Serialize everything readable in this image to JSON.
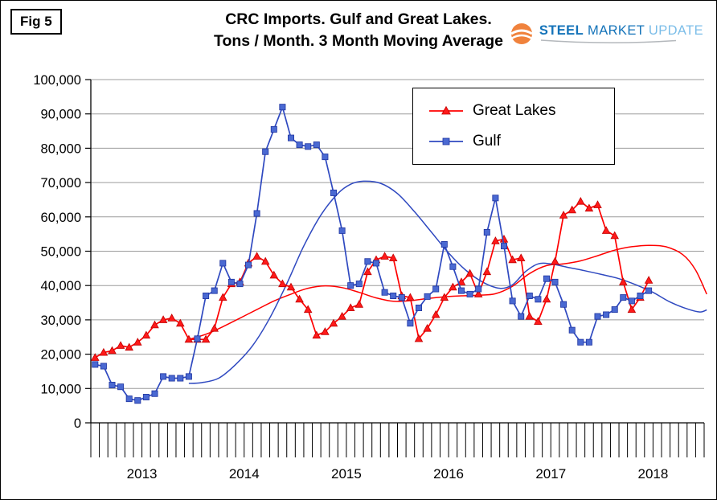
{
  "figure": {
    "label": "Fig 5"
  },
  "title": {
    "line1": "CRC Imports. Gulf and Great Lakes.",
    "line2": "Tons / Month. 3 Month Moving Average"
  },
  "brand": {
    "steel": "STEEL",
    "market": "MARKET",
    "update": "UPDATE",
    "steel_color": "#1473b9",
    "market_color": "#1473b9",
    "update_color": "#7bbde8",
    "swoosh_color": "#f0823c"
  },
  "chart_data": {
    "type": "line",
    "title": "CRC Imports. Gulf and Great Lakes. Tons / Month. 3 Month Moving Average",
    "xlabel": "",
    "ylabel": "",
    "x_start": "2013-01",
    "frequency": "monthly",
    "year_labels": [
      "2013",
      "2014",
      "2015",
      "2016",
      "2017",
      "2018"
    ],
    "y_axis": {
      "min": 0,
      "max": 100000,
      "step": 10000,
      "tick_labels": [
        "0",
        "10,000",
        "20,000",
        "30,000",
        "40,000",
        "50,000",
        "60,000",
        "70,000",
        "80,000",
        "90,000",
        "100,000"
      ]
    },
    "grid": "horizontal",
    "legend_position": "inside-top-right",
    "series": [
      {
        "name": "Great Lakes",
        "color": "#ff0000",
        "marker": "triangle",
        "marker_fill": "#ff1a1a",
        "marker_stroke": "#c00000",
        "values": [
          19000,
          20500,
          21000,
          22500,
          22000,
          23500,
          25500,
          28500,
          30000,
          30500,
          29000,
          24300,
          24300,
          24300,
          27500,
          36500,
          40500,
          41000,
          46500,
          48500,
          47000,
          43000,
          40500,
          39500,
          36000,
          33000,
          25500,
          26500,
          29000,
          31000,
          33500,
          34500,
          44000,
          47500,
          48500,
          48000,
          37000,
          36500,
          24500,
          27500,
          31500,
          36500,
          39500,
          41000,
          43500,
          37500,
          44000,
          53000,
          53500,
          47500,
          48000,
          31000,
          29500,
          36000,
          47000,
          60500,
          62000,
          64500,
          62500,
          63500,
          56000,
          54500,
          41000,
          33000,
          36500,
          41500
        ]
      },
      {
        "name": "Gulf",
        "color": "#2f49c0",
        "marker": "square",
        "marker_fill": "#4a69d2",
        "marker_stroke": "#1e34a0",
        "values": [
          17000,
          16500,
          11000,
          10500,
          7000,
          6500,
          7500,
          8500,
          13500,
          13000,
          13000,
          13500,
          24500,
          37000,
          38500,
          46500,
          41000,
          40500,
          46000,
          61000,
          79000,
          85500,
          92000,
          83000,
          81000,
          80500,
          81000,
          77500,
          67000,
          56000,
          40000,
          40500,
          47000,
          46500,
          38000,
          37000,
          36500,
          29000,
          33500,
          36800,
          39000,
          52000,
          45500,
          38500,
          37500,
          39000,
          55500,
          65500,
          51500,
          35500,
          31000,
          37000,
          36000,
          42000,
          41000,
          34500,
          27000,
          23500,
          23500,
          31000,
          31500,
          33000,
          36500,
          35500,
          37000,
          38500
        ]
      }
    ],
    "trend_lines": [
      {
        "name": "Great Lakes trend",
        "color": "#ff0000",
        "points": [
          [
            11.5,
            24300
          ],
          [
            13.5,
            25800
          ],
          [
            15.5,
            28000
          ],
          [
            17.5,
            30500
          ],
          [
            19.5,
            33000
          ],
          [
            21.5,
            35500
          ],
          [
            23.5,
            37500
          ],
          [
            25.5,
            39200
          ],
          [
            27.5,
            39900
          ],
          [
            29.5,
            39400
          ],
          [
            31.5,
            38000
          ],
          [
            33.5,
            36400
          ],
          [
            35.5,
            35400
          ],
          [
            37.5,
            35600
          ],
          [
            39.5,
            36200
          ],
          [
            41.5,
            36700
          ],
          [
            43.5,
            37000
          ],
          [
            45.5,
            37200
          ],
          [
            47.5,
            37600
          ],
          [
            49.5,
            39800
          ],
          [
            51.5,
            43500
          ],
          [
            53.5,
            45800
          ],
          [
            55.5,
            46300
          ],
          [
            57.5,
            47200
          ],
          [
            59.5,
            48700
          ],
          [
            61.5,
            50300
          ],
          [
            63.5,
            51300
          ],
          [
            65.5,
            51700
          ],
          [
            67.5,
            51300
          ],
          [
            69.5,
            49000
          ],
          [
            71,
            44500
          ],
          [
            72.3,
            37500
          ]
        ]
      },
      {
        "name": "Gulf trend",
        "color": "#2f49c0",
        "points": [
          [
            11.5,
            11500
          ],
          [
            13,
            11700
          ],
          [
            15,
            13000
          ],
          [
            17,
            17000
          ],
          [
            19,
            22500
          ],
          [
            21,
            30500
          ],
          [
            23,
            40500
          ],
          [
            25,
            51500
          ],
          [
            27,
            60500
          ],
          [
            29,
            66800
          ],
          [
            30.5,
            69500
          ],
          [
            32,
            70400
          ],
          [
            34,
            69800
          ],
          [
            36,
            66800
          ],
          [
            38,
            61500
          ],
          [
            40,
            55500
          ],
          [
            42,
            49500
          ],
          [
            44,
            44500
          ],
          [
            46,
            41000
          ],
          [
            48,
            39200
          ],
          [
            49.5,
            40200
          ],
          [
            51,
            44000
          ],
          [
            52.5,
            46300
          ],
          [
            54,
            46300
          ],
          [
            56,
            45300
          ],
          [
            58,
            44300
          ],
          [
            60,
            43200
          ],
          [
            62,
            42000
          ],
          [
            64,
            40200
          ],
          [
            66,
            38000
          ],
          [
            68,
            35200
          ],
          [
            70,
            33200
          ],
          [
            71.5,
            32300
          ],
          [
            72.3,
            32900
          ]
        ]
      }
    ]
  }
}
